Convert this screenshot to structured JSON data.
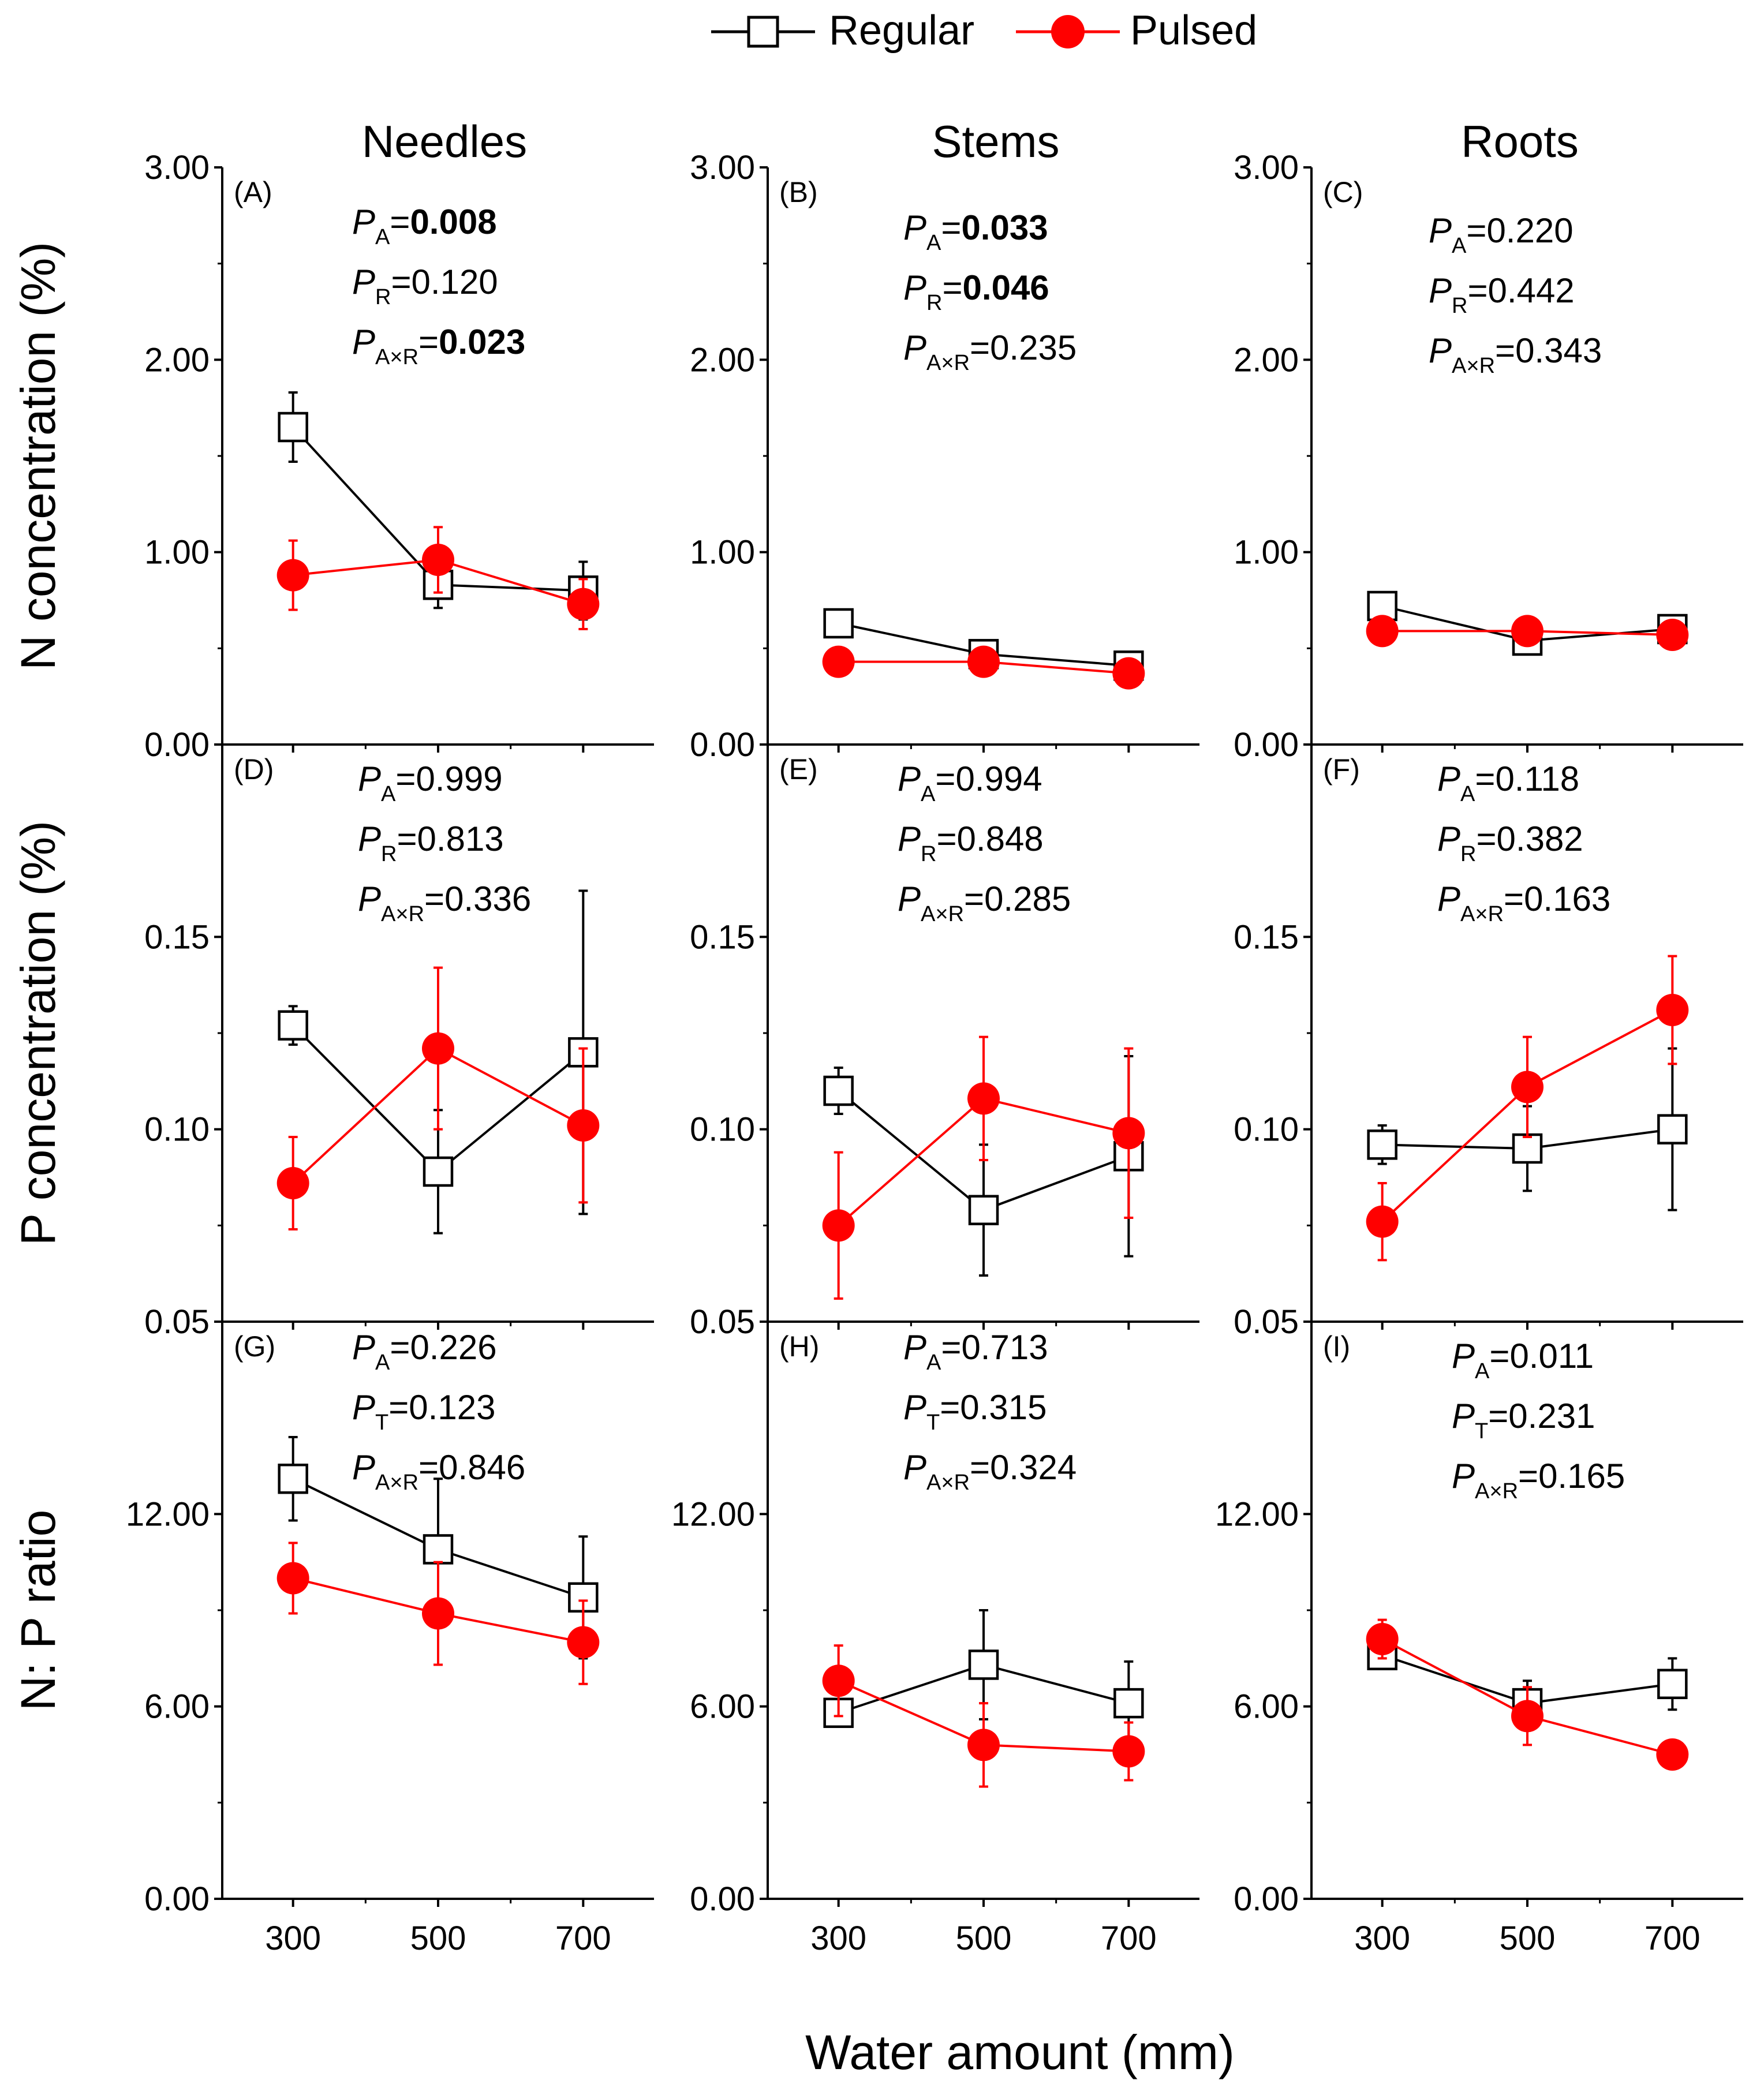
{
  "legend": {
    "position": "top-center",
    "items": [
      {
        "label": "Regular",
        "color": "#000000",
        "marker": "open-square"
      },
      {
        "label": "Pulsed",
        "color": "#ff0000",
        "marker": "filled-circle"
      }
    ]
  },
  "figure": {
    "xlabel": "Water amount (mm)",
    "row_labels": [
      "N concentration (%)",
      "P concentration (%)",
      "N: P ratio"
    ],
    "column_titles": [
      "Needles",
      "Stems",
      "Roots"
    ],
    "x_ticks": [
      "300",
      "500",
      "700"
    ]
  },
  "chart_data": [
    {
      "type": "line",
      "panel": "(A)",
      "column": "Needles",
      "row": "N concentration (%)",
      "x": [
        300,
        500,
        700
      ],
      "ylim": [
        0,
        3
      ],
      "yticks": [
        "0.00",
        "1.00",
        "2.00",
        "3.00"
      ],
      "series": [
        {
          "name": "Regular",
          "values": [
            1.65,
            0.83,
            0.8
          ],
          "err": [
            0.18,
            0.12,
            0.15
          ]
        },
        {
          "name": "Pulsed",
          "values": [
            0.88,
            0.96,
            0.73
          ],
          "err": [
            0.18,
            0.17,
            0.13
          ]
        }
      ],
      "stats": [
        {
          "sym": "P",
          "sub": "A",
          "eq": "=",
          "val": "0.008",
          "bold": true
        },
        {
          "sym": "P",
          "sub": "R",
          "eq": "=",
          "val": "0.120",
          "bold": false
        },
        {
          "sym": "P",
          "sub": "A×R",
          "eq": "=",
          "val": "0.023",
          "bold": true
        }
      ]
    },
    {
      "type": "line",
      "panel": "(B)",
      "column": "Stems",
      "row": "N concentration (%)",
      "x": [
        300,
        500,
        700
      ],
      "ylim": [
        0,
        3
      ],
      "yticks": [
        "0.00",
        "1.00",
        "2.00",
        "3.00"
      ],
      "series": [
        {
          "name": "Regular",
          "values": [
            0.63,
            0.47,
            0.41
          ],
          "err": [
            0.05,
            0.04,
            0.04
          ]
        },
        {
          "name": "Pulsed",
          "values": [
            0.43,
            0.43,
            0.37
          ],
          "err": [
            0.03,
            0.03,
            0.03
          ]
        }
      ],
      "stats": [
        {
          "sym": "P",
          "sub": "A",
          "eq": "=",
          "val": "0.033",
          "bold": true
        },
        {
          "sym": "P",
          "sub": "R",
          "eq": "=",
          "val": "0.046",
          "bold": true
        },
        {
          "sym": "P",
          "sub": "A×R",
          "eq": "=",
          "val": "0.235",
          "bold": false
        }
      ]
    },
    {
      "type": "line",
      "panel": "(C)",
      "column": "Roots",
      "row": "N concentration (%)",
      "x": [
        300,
        500,
        700
      ],
      "ylim": [
        0,
        3
      ],
      "yticks": [
        "0.00",
        "1.00",
        "2.00",
        "3.00"
      ],
      "series": [
        {
          "name": "Regular",
          "values": [
            0.72,
            0.54,
            0.6
          ],
          "err": [
            0.06,
            0.04,
            0.04
          ]
        },
        {
          "name": "Pulsed",
          "values": [
            0.59,
            0.59,
            0.57
          ],
          "err": [
            0.03,
            0.03,
            0.03
          ]
        }
      ],
      "stats": [
        {
          "sym": "P",
          "sub": "A",
          "eq": "=",
          "val": "0.220",
          "bold": false
        },
        {
          "sym": "P",
          "sub": "R",
          "eq": "=",
          "val": "0.442",
          "bold": false
        },
        {
          "sym": "P",
          "sub": "A×R",
          "eq": "=",
          "val": "0.343",
          "bold": false
        }
      ]
    },
    {
      "type": "line",
      "panel": "(D)",
      "column": "Needles",
      "row": "P concentration (%)",
      "x": [
        300,
        500,
        700
      ],
      "ylim": [
        0.05,
        0.2
      ],
      "yticks": [
        "0.05",
        "0.10",
        "0.15"
      ],
      "series": [
        {
          "name": "Regular",
          "values": [
            0.127,
            0.089,
            0.12
          ],
          "err": [
            0.005,
            0.016,
            0.042
          ]
        },
        {
          "name": "Pulsed",
          "values": [
            0.086,
            0.121,
            0.101
          ],
          "err": [
            0.012,
            0.021,
            0.02
          ]
        }
      ],
      "stats": [
        {
          "sym": "P",
          "sub": "A",
          "eq": "=",
          "val": "0.999",
          "bold": false
        },
        {
          "sym": "P",
          "sub": "R",
          "eq": "=",
          "val": "0.813",
          "bold": false
        },
        {
          "sym": "P",
          "sub": "A×R",
          "eq": "=",
          "val": "0.336",
          "bold": false
        }
      ]
    },
    {
      "type": "line",
      "panel": "(E)",
      "column": "Stems",
      "row": "P concentration (%)",
      "x": [
        300,
        500,
        700
      ],
      "ylim": [
        0.05,
        0.2
      ],
      "yticks": [
        "0.05",
        "0.10",
        "0.15"
      ],
      "series": [
        {
          "name": "Regular",
          "values": [
            0.11,
            0.079,
            0.093
          ],
          "err": [
            0.006,
            0.017,
            0.026
          ]
        },
        {
          "name": "Pulsed",
          "values": [
            0.075,
            0.108,
            0.099
          ],
          "err": [
            0.019,
            0.016,
            0.022
          ]
        }
      ],
      "stats": [
        {
          "sym": "P",
          "sub": "A",
          "eq": "=",
          "val": "0.994",
          "bold": false
        },
        {
          "sym": "P",
          "sub": "R",
          "eq": "=",
          "val": "0.848",
          "bold": false
        },
        {
          "sym": "P",
          "sub": "A×R",
          "eq": "=",
          "val": "0.285",
          "bold": false
        }
      ]
    },
    {
      "type": "line",
      "panel": "(F)",
      "column": "Roots",
      "row": "P concentration (%)",
      "x": [
        300,
        500,
        700
      ],
      "ylim": [
        0.05,
        0.2
      ],
      "yticks": [
        "0.05",
        "0.10",
        "0.15"
      ],
      "series": [
        {
          "name": "Regular",
          "values": [
            0.096,
            0.095,
            0.1
          ],
          "err": [
            0.005,
            0.011,
            0.021
          ]
        },
        {
          "name": "Pulsed",
          "values": [
            0.076,
            0.111,
            0.131
          ],
          "err": [
            0.01,
            0.013,
            0.014
          ]
        }
      ],
      "stats": [
        {
          "sym": "P",
          "sub": "A",
          "eq": "=",
          "val": "0.118",
          "bold": false
        },
        {
          "sym": "P",
          "sub": "R",
          "eq": "=",
          "val": "0.382",
          "bold": false
        },
        {
          "sym": "P",
          "sub": "A×R",
          "eq": "=",
          "val": "0.163",
          "bold": false
        }
      ]
    },
    {
      "type": "line",
      "panel": "(G)",
      "column": "Needles",
      "row": "N: P ratio",
      "x": [
        300,
        500,
        700
      ],
      "ylim": [
        0,
        18
      ],
      "yticks": [
        "0.00",
        "6.00",
        "12.00"
      ],
      "series": [
        {
          "name": "Regular",
          "values": [
            13.1,
            10.9,
            9.4
          ],
          "err": [
            1.3,
            2.2,
            1.9
          ]
        },
        {
          "name": "Pulsed",
          "values": [
            10.0,
            8.9,
            8.0
          ],
          "err": [
            1.1,
            1.6,
            1.3
          ]
        }
      ],
      "stats": [
        {
          "sym": "P",
          "sub": "A",
          "eq": "=",
          "val": "0.226",
          "bold": false
        },
        {
          "sym": "P",
          "sub": "T",
          "eq": "=",
          "val": "0.123",
          "bold": false
        },
        {
          "sym": "P",
          "sub": "A×R",
          "eq": "=",
          "val": "0.846",
          "bold": false
        }
      ]
    },
    {
      "type": "line",
      "panel": "(H)",
      "column": "Stems",
      "row": "N: P ratio",
      "x": [
        300,
        500,
        700
      ],
      "ylim": [
        0,
        18
      ],
      "yticks": [
        "0.00",
        "6.00",
        "12.00"
      ],
      "series": [
        {
          "name": "Regular",
          "values": [
            5.8,
            7.3,
            6.1
          ],
          "err": [
            0.4,
            1.7,
            1.3
          ]
        },
        {
          "name": "Pulsed",
          "values": [
            6.8,
            4.8,
            4.6
          ],
          "err": [
            1.1,
            1.3,
            0.9
          ]
        }
      ],
      "stats": [
        {
          "sym": "P",
          "sub": "A",
          "eq": "=",
          "val": "0.713",
          "bold": false
        },
        {
          "sym": "P",
          "sub": "T",
          "eq": "=",
          "val": "0.315",
          "bold": false
        },
        {
          "sym": "P",
          "sub": "A×R",
          "eq": "=",
          "val": "0.324",
          "bold": false
        }
      ]
    },
    {
      "type": "line",
      "panel": "(I)",
      "column": "Roots",
      "row": "N: P ratio",
      "x": [
        300,
        500,
        700
      ],
      "ylim": [
        0,
        18
      ],
      "yticks": [
        "0.00",
        "6.00",
        "12.00"
      ],
      "series": [
        {
          "name": "Regular",
          "values": [
            7.6,
            6.1,
            6.7
          ],
          "err": [
            0.4,
            0.7,
            0.8
          ]
        },
        {
          "name": "Pulsed",
          "values": [
            8.1,
            5.7,
            4.5
          ],
          "err": [
            0.6,
            0.9,
            0.2
          ]
        }
      ],
      "stats": [
        {
          "sym": "P",
          "sub": "A",
          "eq": "=",
          "val": "0.011",
          "bold": false
        },
        {
          "sym": "P",
          "sub": "T",
          "eq": "=",
          "val": "0.231",
          "bold": false
        },
        {
          "sym": "P",
          "sub": "A×R",
          "eq": "=",
          "val": "0.165",
          "bold": false
        }
      ]
    }
  ]
}
